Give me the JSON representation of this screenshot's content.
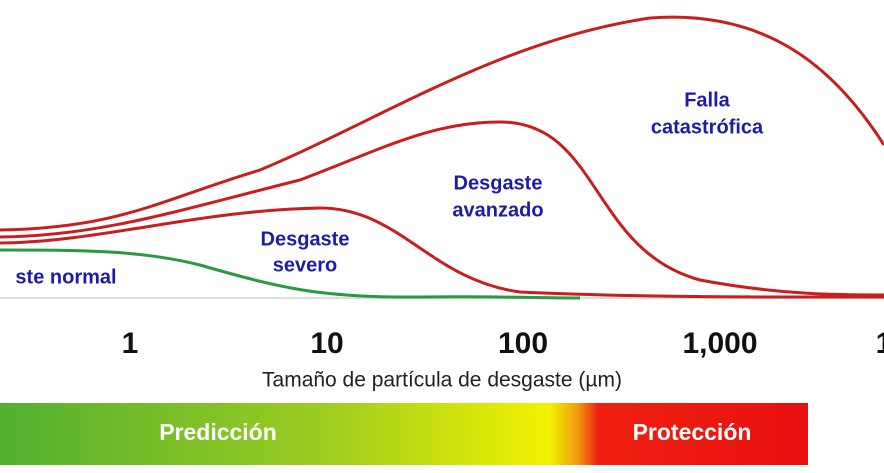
{
  "labels": {
    "normal": "ste normal",
    "severe": [
      "Desgaste",
      "severo"
    ],
    "advanced": [
      "Desgaste",
      "avanzado"
    ],
    "catastrophic": [
      "Falla",
      "catastrófica"
    ]
  },
  "ticks": [
    "1",
    "10",
    "100",
    "1,000",
    "1"
  ],
  "axis_title": "Tamaño de partícula de desgaste (µm)",
  "bar": {
    "left": "Predicción",
    "right": "Protección"
  }
}
